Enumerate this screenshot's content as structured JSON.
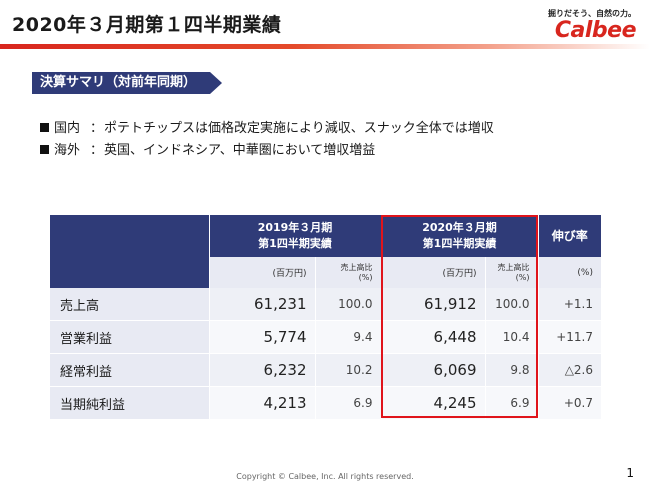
{
  "header": {
    "title": "2020年３月期第１四半期業績",
    "tagline": "掘りだそう、自然の力。",
    "brand": "Calbee"
  },
  "section": {
    "label": "決算サマリ（対前年同期）"
  },
  "bullets": [
    {
      "label": "国内",
      "sep": "：",
      "text": "ポテトチップスは価格改定実施により減収、スナック全体では増収"
    },
    {
      "label": "海外",
      "sep": "：",
      "text": "英国、インドネシア、中華圏において増収増益"
    }
  ],
  "table": {
    "period_prev": {
      "line1": "2019年３月期",
      "line2": "第1四半期実績"
    },
    "period_curr": {
      "line1": "2020年３月期",
      "line2": "第1四半期実績"
    },
    "growth_header": "伸び率",
    "unit_amount": "(百万円)",
    "unit_ratio_line1": "売上高比",
    "unit_ratio_line2": "(%)",
    "unit_growth": "(%)",
    "rows": [
      {
        "label": "売上高",
        "prev_amount": "61,231",
        "prev_ratio": "100.0",
        "curr_amount": "61,912",
        "curr_ratio": "100.0",
        "growth": "+1.1"
      },
      {
        "label": "営業利益",
        "prev_amount": "5,774",
        "prev_ratio": "9.4",
        "curr_amount": "6,448",
        "curr_ratio": "10.4",
        "growth": "+11.7"
      },
      {
        "label": "経常利益",
        "prev_amount": "6,232",
        "prev_ratio": "10.2",
        "curr_amount": "6,069",
        "curr_ratio": "9.8",
        "growth": "△2.6"
      },
      {
        "label": "当期純利益",
        "prev_amount": "4,213",
        "prev_ratio": "6.9",
        "curr_amount": "4,245",
        "curr_ratio": "6.9",
        "growth": "+0.7"
      }
    ]
  },
  "footer": {
    "copyright": "Copyright © Calbee, Inc. All rights reserved.",
    "page": "1"
  },
  "colors": {
    "brand_red": "#d8261e",
    "navy": "#2f3b78",
    "highlight": "#e0141b"
  }
}
